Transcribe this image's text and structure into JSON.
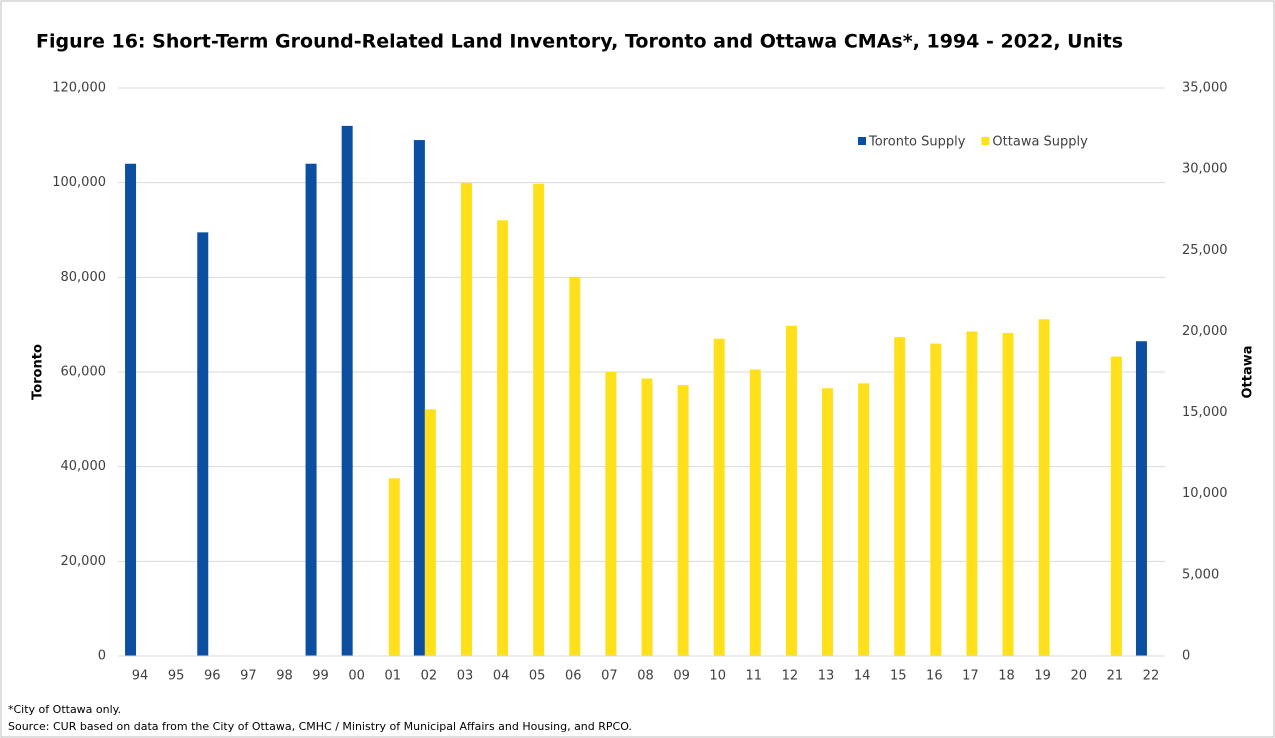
{
  "chart_data": {
    "type": "bar",
    "title": "Figure 16: Short-Term Ground-Related Land Inventory, Toronto and Ottawa CMAs*, 1994 - 2022, Units",
    "y_label": "Toronto",
    "y2_label": "Ottawa",
    "categories": [
      "94",
      "95",
      "96",
      "97",
      "98",
      "99",
      "00",
      "01",
      "02",
      "03",
      "04",
      "05",
      "06",
      "07",
      "08",
      "09",
      "10",
      "11",
      "12",
      "13",
      "14",
      "15",
      "16",
      "17",
      "18",
      "19",
      "20",
      "21",
      "22"
    ],
    "series": [
      {
        "name": "Toronto Supply",
        "color": "#0b4ea2",
        "axis": "y",
        "values": [
          104000,
          null,
          89500,
          null,
          null,
          104000,
          112000,
          null,
          109000,
          null,
          null,
          null,
          null,
          null,
          null,
          null,
          null,
          null,
          null,
          null,
          null,
          null,
          null,
          null,
          null,
          null,
          null,
          null,
          66500
        ]
      },
      {
        "name": "Ottawa Supply",
        "color": "#ffe01b",
        "axis": "y2",
        "values": [
          null,
          null,
          null,
          null,
          null,
          null,
          null,
          10950,
          15200,
          29150,
          26850,
          29100,
          23350,
          17500,
          17100,
          16700,
          19550,
          17650,
          20350,
          16500,
          16800,
          19650,
          19250,
          20000,
          19900,
          20750,
          null,
          18450,
          null
        ]
      }
    ],
    "ylim": [
      0,
      120000
    ],
    "yticks": [
      0,
      {
        "value": 20000,
        "label": "20,000"
      },
      {
        "value": 40000,
        "label": "40,000"
      },
      {
        "value": 60000,
        "label": "60,000"
      },
      {
        "value": 80000,
        "label": "80,000"
      },
      {
        "value": 100000,
        "label": "100,000"
      },
      {
        "value": 120000,
        "label": "120,000"
      }
    ],
    "y2lim": [
      0,
      35000
    ],
    "y2ticks": [
      0,
      {
        "value": 5000,
        "label": "5,000"
      },
      {
        "value": 10000,
        "label": "10,000"
      },
      {
        "value": 15000,
        "label": "15,000"
      },
      {
        "value": 20000,
        "label": "20,000"
      },
      {
        "value": 25000,
        "label": "25,000"
      },
      {
        "value": 30000,
        "label": "30,000"
      },
      {
        "value": 35000,
        "label": "35,000"
      }
    ],
    "grid": true,
    "legend": "top-right",
    "notes": [
      "*City of Ottawa only.",
      "Source: CUR based on data from the City of Ottawa, CMHC / Ministry of Municipal Affairs and Housing, and RPCO."
    ]
  }
}
